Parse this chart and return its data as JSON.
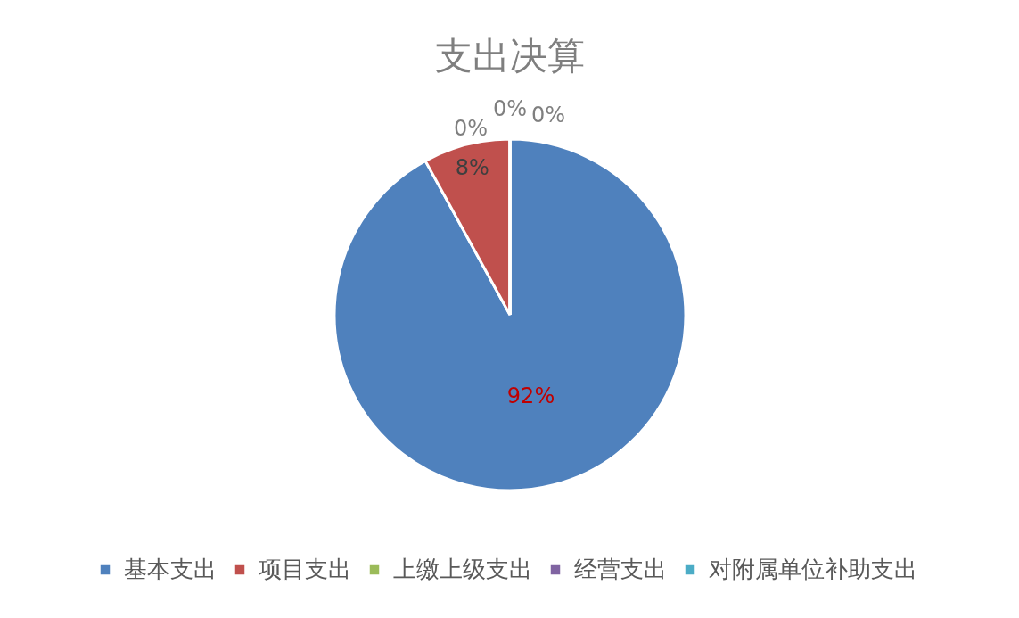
{
  "chart_data": {
    "type": "pie",
    "title": "支出决算",
    "categories": [
      "基本支出",
      "项目支出",
      "上缴上级支出",
      "经营支出",
      "对附属单位补助支出"
    ],
    "values": [
      92,
      8,
      0,
      0,
      0
    ],
    "colors": [
      "#4f81bd",
      "#c0504d",
      "#9bbb59",
      "#8064a2",
      "#4bacc6"
    ],
    "value_labels": [
      "92%",
      "8%",
      "0%",
      "0%",
      "0%"
    ],
    "legend": "bottom"
  }
}
